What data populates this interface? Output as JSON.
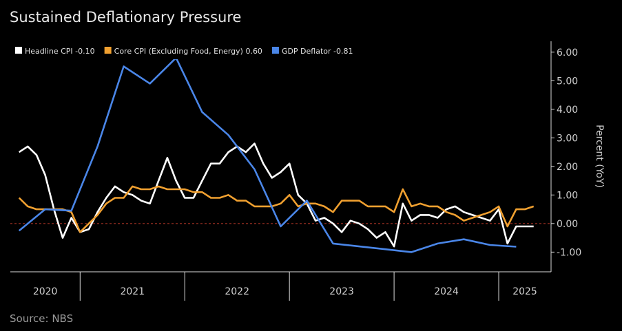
{
  "chart_data": {
    "type": "line",
    "title": "Sustained Deflationary Pressure",
    "source": "Source: NBS",
    "y_label": "Percent (YoY)",
    "xlim": [
      "2020-05",
      "2025-07"
    ],
    "xticks": [
      "2020",
      "2021",
      "2022",
      "2023",
      "2024",
      "2025"
    ],
    "ylim": [
      -1.69,
      6.38
    ],
    "yticks": [
      {
        "value": 6,
        "label": "6.00"
      },
      {
        "value": 5,
        "label": "5.00"
      },
      {
        "value": 4,
        "label": "4.00"
      },
      {
        "value": 3,
        "label": "3.00"
      },
      {
        "value": 2,
        "label": "2.00"
      },
      {
        "value": 1,
        "label": "1.00"
      },
      {
        "value": 0,
        "label": "0.00"
      },
      {
        "value": -1,
        "label": "-1.00"
      }
    ],
    "zero_line_color": "#c0392b",
    "series": [
      {
        "name": "Headline CPI -0.10",
        "color": "#ffffff",
        "x": [
          "2020-06",
          "2020-07",
          "2020-08",
          "2020-09",
          "2020-10",
          "2020-11",
          "2020-12",
          "2021-01",
          "2021-02",
          "2021-03",
          "2021-04",
          "2021-05",
          "2021-06",
          "2021-07",
          "2021-08",
          "2021-09",
          "2021-10",
          "2021-11",
          "2021-12",
          "2022-01",
          "2022-02",
          "2022-03",
          "2022-04",
          "2022-05",
          "2022-06",
          "2022-07",
          "2022-08",
          "2022-09",
          "2022-10",
          "2022-11",
          "2022-12",
          "2023-01",
          "2023-02",
          "2023-03",
          "2023-04",
          "2023-05",
          "2023-06",
          "2023-07",
          "2023-08",
          "2023-09",
          "2023-10",
          "2023-11",
          "2023-12",
          "2024-01",
          "2024-02",
          "2024-03",
          "2024-04",
          "2024-05",
          "2024-06",
          "2024-07",
          "2024-08",
          "2024-09",
          "2024-10",
          "2024-11",
          "2024-12",
          "2025-01",
          "2025-02",
          "2025-03",
          "2025-04",
          "2025-05"
        ],
        "values": [
          2.5,
          2.7,
          2.4,
          1.7,
          0.5,
          -0.5,
          0.2,
          -0.3,
          -0.2,
          0.4,
          0.9,
          1.3,
          1.1,
          1.0,
          0.8,
          0.7,
          1.5,
          2.3,
          1.5,
          0.9,
          0.9,
          1.5,
          2.1,
          2.1,
          2.5,
          2.7,
          2.5,
          2.8,
          2.1,
          1.6,
          1.8,
          2.1,
          1.0,
          0.7,
          0.1,
          0.2,
          0.0,
          -0.3,
          0.1,
          0.0,
          -0.2,
          -0.5,
          -0.3,
          -0.8,
          0.7,
          0.1,
          0.3,
          0.3,
          0.2,
          0.5,
          0.6,
          0.4,
          0.3,
          0.2,
          0.1,
          0.5,
          -0.7,
          -0.1,
          -0.1,
          -0.1
        ]
      },
      {
        "name": "Core CPI (Excluding Food, Energy) 0.60",
        "color": "#f0a030",
        "x": [
          "2020-06",
          "2020-07",
          "2020-08",
          "2020-09",
          "2020-10",
          "2020-11",
          "2020-12",
          "2021-01",
          "2021-02",
          "2021-03",
          "2021-04",
          "2021-05",
          "2021-06",
          "2021-07",
          "2021-08",
          "2021-09",
          "2021-10",
          "2021-11",
          "2021-12",
          "2022-01",
          "2022-02",
          "2022-03",
          "2022-04",
          "2022-05",
          "2022-06",
          "2022-07",
          "2022-08",
          "2022-09",
          "2022-10",
          "2022-11",
          "2022-12",
          "2023-01",
          "2023-02",
          "2023-03",
          "2023-04",
          "2023-05",
          "2023-06",
          "2023-07",
          "2023-08",
          "2023-09",
          "2023-10",
          "2023-11",
          "2023-12",
          "2024-01",
          "2024-02",
          "2024-03",
          "2024-04",
          "2024-05",
          "2024-06",
          "2024-07",
          "2024-08",
          "2024-09",
          "2024-10",
          "2024-11",
          "2024-12",
          "2025-01",
          "2025-02",
          "2025-03",
          "2025-04",
          "2025-05"
        ],
        "values": [
          0.9,
          0.6,
          0.5,
          0.5,
          0.5,
          0.5,
          0.4,
          -0.3,
          0.0,
          0.3,
          0.7,
          0.9,
          0.9,
          1.3,
          1.2,
          1.2,
          1.3,
          1.2,
          1.2,
          1.2,
          1.1,
          1.1,
          0.9,
          0.9,
          1.0,
          0.8,
          0.8,
          0.6,
          0.6,
          0.6,
          0.7,
          1.0,
          0.6,
          0.7,
          0.7,
          0.6,
          0.4,
          0.8,
          0.8,
          0.8,
          0.6,
          0.6,
          0.6,
          0.4,
          1.2,
          0.6,
          0.7,
          0.6,
          0.6,
          0.4,
          0.3,
          0.1,
          0.2,
          0.3,
          0.4,
          0.6,
          -0.1,
          0.5,
          0.5,
          0.6
        ]
      },
      {
        "name": "GDP Deflator -0.81",
        "color": "#4a86e8",
        "x": [
          "2020-06",
          "2020-09",
          "2020-12",
          "2021-03",
          "2021-06",
          "2021-09",
          "2021-12",
          "2022-03",
          "2022-06",
          "2022-09",
          "2022-12",
          "2023-03",
          "2023-06",
          "2023-09",
          "2023-12",
          "2024-03",
          "2024-06",
          "2024-09",
          "2024-12",
          "2025-03"
        ],
        "values": [
          -0.25,
          0.5,
          0.45,
          2.7,
          5.5,
          4.9,
          5.8,
          3.9,
          3.1,
          1.9,
          -0.1,
          0.8,
          -0.7,
          -0.8,
          -0.9,
          -1.0,
          -0.7,
          -0.55,
          -0.75,
          -0.81
        ]
      }
    ]
  }
}
